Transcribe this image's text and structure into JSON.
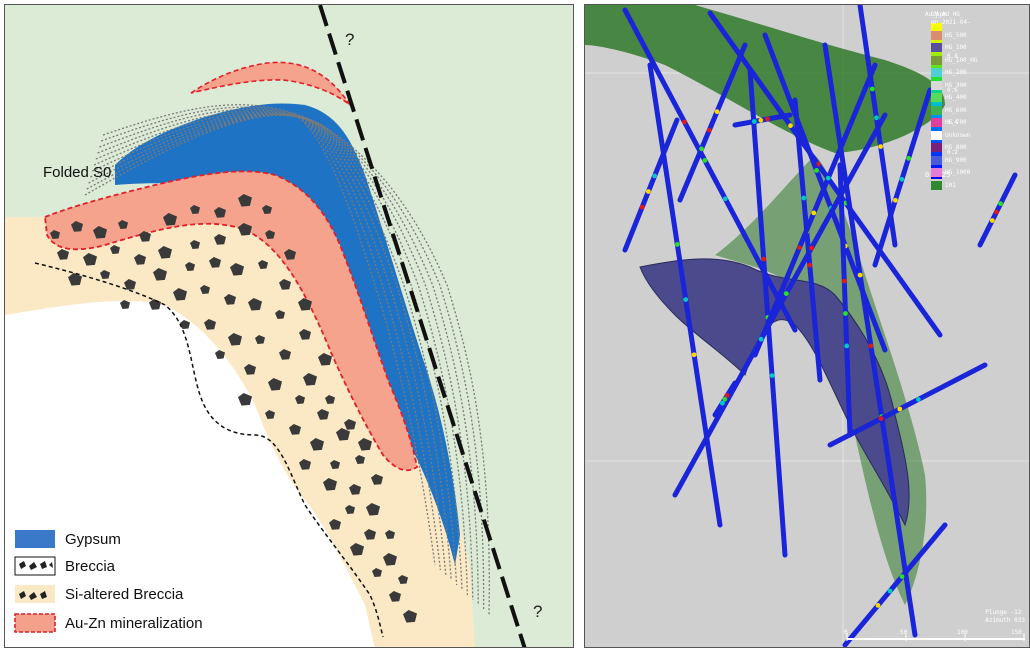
{
  "geologic_section": {
    "question_mark_top": "?",
    "question_mark_bottom": "?",
    "folded_s0_label": "Folded S0",
    "legend": [
      {
        "key": "gypsum",
        "label": "Gypsum",
        "color": "#3a78c9"
      },
      {
        "key": "breccia",
        "label": "Breccia",
        "color": "#3a3a3a"
      },
      {
        "key": "si_breccia",
        "label": "Si-altered Breccia",
        "color": "#f8e6bf"
      },
      {
        "key": "mineralization",
        "label": "Au-Zn mineralization",
        "color": "#f5a08a"
      }
    ],
    "colors": {
      "background_green": "#dcebd6",
      "si_breccia_fill": "#fbe9c6",
      "gypsum_blue": "#1f73c4",
      "mineral_fill": "#f5a38c",
      "mineral_border": "#e0202a",
      "fault_line": "#111111"
    }
  },
  "model_view": {
    "colorbar": {
      "title": "Au_ppm",
      "tick_labels": [
        "0.8",
        "0.6",
        "0.4",
        "0.2"
      ],
      "min_label": "0.0325"
    },
    "legend_title_1": "GM_AU_HG_",
    "legend_title_2": "on 2021-04-",
    "legend": [
      {
        "label": "HG_500",
        "color": "#d98c6e"
      },
      {
        "label": "HG_100",
        "color": "#5a4f9c"
      },
      {
        "label": "HG_100_HG",
        "color": "#7a9a3a"
      },
      {
        "label": "HG_200",
        "color": "#4fd0d0"
      },
      {
        "label": "HG_300",
        "color": "#d8d8d8"
      },
      {
        "label": "HG_400",
        "color": "#5ad85a"
      },
      {
        "label": "HG_600",
        "color": "#3fb04f"
      },
      {
        "label": "HG_700",
        "color": "#e03fa0"
      },
      {
        "label": "Unknown",
        "color": "#ffffff"
      },
      {
        "label": "HG_800",
        "color": "#7a1f7a"
      },
      {
        "label": "HG_900",
        "color": "#4a5ad8"
      },
      {
        "label": "HG_1000",
        "color": "#e87ad8"
      },
      {
        "label": "101",
        "color": "#2f8a2f"
      }
    ],
    "view_info_1": "Plunge -12",
    "view_info_2": "Azimuth 033",
    "scale_labels": [
      "0",
      "50",
      "100",
      "150"
    ],
    "colors": {
      "background": "#cfcfcf",
      "drillhole": "#1a24d8",
      "green_surface": "#2f7a2a",
      "purple_surface": "#4a4a8c"
    }
  }
}
